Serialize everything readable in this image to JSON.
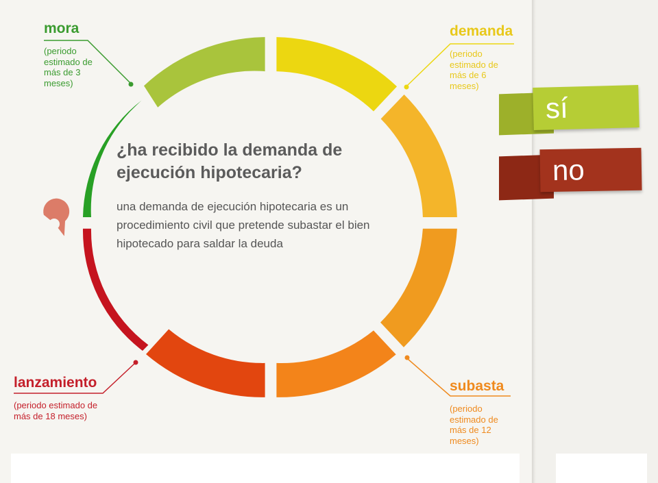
{
  "question": {
    "title": "¿ha recibido la demanda de ejecución hipotecaria?",
    "description": "una demanda de ejecución hipotecaria es un procedimiento civil que pretende subastar el bien hipotecado para saldar la deuda"
  },
  "phases": {
    "mora": {
      "title": "mora",
      "note": "(periodo estimado de más de 3 meses)",
      "color": "#3a9b2f"
    },
    "demanda": {
      "title": "demanda",
      "note": "(periodo estimado de más de 6 meses)",
      "color": "#e8c81a"
    },
    "subasta": {
      "title": "subasta",
      "note": "(periodo estimado de más de 12 meses)",
      "color": "#ef8a1e"
    },
    "lanzamiento": {
      "title": "lanzamiento",
      "note": "(periodo estimado de más de 18 meses)",
      "color": "#c41f2a"
    }
  },
  "answers": {
    "yes_label": "sí",
    "yes_color": "#b5cc33",
    "no_label": "no",
    "no_color": "#a3331d"
  },
  "current_marker": {
    "icon": "location-pin-icon",
    "color": "#e08a78"
  }
}
